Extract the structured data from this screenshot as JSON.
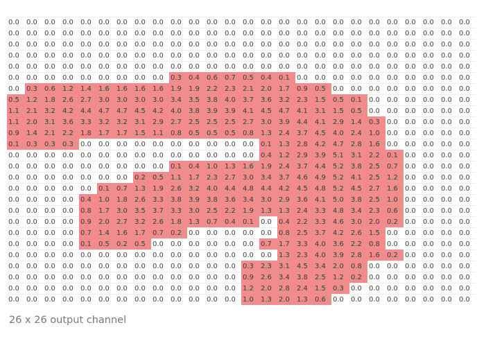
{
  "caption": "26 x 26 output channel",
  "highlight_color": "#f28b8b",
  "grid": {
    "rows": 26,
    "cols": 26,
    "values": [
      [
        0.0,
        0.0,
        0.0,
        0.0,
        0.0,
        0.0,
        0.0,
        0.0,
        0.0,
        0.0,
        0.0,
        0.0,
        0.0,
        0.0,
        0.0,
        0.0,
        0.0,
        0.0,
        0.0,
        0.0,
        0.0,
        0.0,
        0.0,
        0.0,
        0.0,
        0.0
      ],
      [
        0.0,
        0.0,
        0.0,
        0.0,
        0.0,
        0.0,
        0.0,
        0.0,
        0.0,
        0.0,
        0.0,
        0.0,
        0.0,
        0.0,
        0.0,
        0.0,
        0.0,
        0.0,
        0.0,
        0.0,
        0.0,
        0.0,
        0.0,
        0.0,
        0.0,
        0.0
      ],
      [
        0.0,
        0.0,
        0.0,
        0.0,
        0.0,
        0.0,
        0.0,
        0.0,
        0.0,
        0.0,
        0.0,
        0.0,
        0.0,
        0.0,
        0.0,
        0.0,
        0.0,
        0.0,
        0.0,
        0.0,
        0.0,
        0.0,
        0.0,
        0.0,
        0.0,
        0.0
      ],
      [
        0.0,
        0.0,
        0.0,
        0.0,
        0.0,
        0.0,
        0.0,
        0.0,
        0.0,
        0.0,
        0.0,
        0.0,
        0.0,
        0.0,
        0.0,
        0.0,
        0.0,
        0.0,
        0.0,
        0.0,
        0.0,
        0.0,
        0.0,
        0.0,
        0.0,
        0.0
      ],
      [
        0.0,
        0.0,
        0.0,
        0.0,
        0.0,
        0.0,
        0.0,
        0.0,
        0.0,
        0.0,
        0.0,
        0.0,
        0.0,
        0.0,
        0.0,
        0.0,
        0.0,
        0.0,
        0.0,
        0.0,
        0.0,
        0.0,
        0.0,
        0.0,
        0.0,
        0.0
      ],
      [
        0.0,
        0.0,
        0.0,
        0.0,
        0.0,
        0.0,
        0.0,
        0.0,
        0.0,
        0.3,
        0.4,
        0.6,
        0.7,
        0.5,
        0.4,
        0.1,
        0.0,
        0.0,
        0.0,
        0.0,
        0.0,
        0.0,
        0.0,
        0.0,
        0.0,
        0.0
      ],
      [
        0.0,
        0.3,
        0.6,
        1.2,
        1.4,
        1.6,
        1.6,
        1.6,
        1.6,
        1.9,
        1.9,
        2.2,
        2.3,
        2.1,
        2.0,
        1.7,
        0.9,
        0.5,
        0.0,
        0.0,
        0.0,
        0.0,
        0.0,
        0.0,
        0.0,
        0.0
      ],
      [
        0.5,
        1.2,
        1.8,
        2.6,
        2.7,
        3.0,
        3.0,
        3.0,
        3.0,
        3.4,
        3.5,
        3.8,
        4.0,
        3.7,
        3.6,
        3.2,
        2.3,
        1.5,
        0.5,
        0.1,
        0.0,
        0.0,
        0.0,
        0.0,
        0.0,
        0.0
      ],
      [
        1.1,
        2.1,
        3.2,
        4.2,
        4.4,
        4.7,
        4.7,
        4.5,
        4.2,
        4.0,
        3.8,
        3.9,
        3.9,
        4.1,
        4.5,
        4.7,
        4.1,
        3.1,
        1.5,
        0.5,
        0.0,
        0.0,
        0.0,
        0.0,
        0.0,
        0.0
      ],
      [
        1.1,
        2.0,
        3.1,
        3.6,
        3.3,
        3.2,
        3.2,
        3.1,
        2.9,
        2.7,
        2.5,
        2.5,
        2.5,
        2.7,
        3.0,
        3.9,
        4.4,
        4.1,
        2.9,
        1.4,
        0.3,
        0.0,
        0.0,
        0.0,
        0.0,
        0.0
      ],
      [
        0.9,
        1.4,
        2.1,
        2.2,
        1.8,
        1.7,
        1.7,
        1.5,
        1.1,
        0.8,
        0.5,
        0.5,
        0.5,
        0.8,
        1.3,
        2.4,
        3.7,
        4.5,
        4.0,
        2.4,
        1.0,
        0.0,
        0.0,
        0.0,
        0.0,
        0.0
      ],
      [
        0.1,
        0.3,
        0.3,
        0.3,
        0.0,
        0.0,
        0.0,
        0.0,
        0.0,
        0.0,
        0.0,
        0.0,
        0.0,
        0.0,
        0.1,
        1.3,
        2.8,
        4.2,
        4.7,
        2.8,
        1.6,
        0.0,
        0.0,
        0.0,
        0.0,
        0.0
      ],
      [
        0.0,
        0.0,
        0.0,
        0.0,
        0.0,
        0.0,
        0.0,
        0.0,
        0.0,
        0.0,
        0.0,
        0.0,
        0.0,
        0.0,
        0.4,
        1.2,
        2.9,
        3.9,
        5.1,
        3.1,
        2.2,
        0.1,
        0.0,
        0.0,
        0.0,
        0.0
      ],
      [
        0.0,
        0.0,
        0.0,
        0.0,
        0.0,
        0.0,
        0.0,
        0.0,
        0.0,
        0.1,
        0.4,
        1.0,
        1.3,
        1.6,
        1.9,
        2.4,
        3.7,
        4.4,
        5.2,
        3.8,
        2.5,
        0.7,
        0.0,
        0.0,
        0.0,
        0.0
      ],
      [
        0.0,
        0.0,
        0.0,
        0.0,
        0.0,
        0.0,
        0.0,
        0.2,
        0.5,
        1.1,
        1.7,
        2.3,
        2.7,
        3.0,
        3.4,
        3.7,
        4.6,
        4.9,
        5.2,
        4.1,
        2.5,
        1.2,
        0.0,
        0.0,
        0.0,
        0.0
      ],
      [
        0.0,
        0.0,
        0.0,
        0.0,
        0.0,
        0.1,
        0.7,
        1.3,
        1.9,
        2.6,
        3.2,
        4.0,
        4.4,
        4.8,
        4.4,
        4.2,
        4.5,
        4.8,
        5.2,
        4.5,
        2.7,
        1.6,
        0.0,
        0.0,
        0.0,
        0.0
      ],
      [
        0.0,
        0.0,
        0.0,
        0.0,
        0.4,
        1.0,
        1.8,
        2.6,
        3.3,
        3.8,
        3.9,
        3.8,
        3.6,
        3.4,
        3.0,
        2.9,
        3.6,
        4.1,
        5.0,
        3.8,
        2.5,
        1.0,
        0.0,
        0.0,
        0.0,
        0.0
      ],
      [
        0.0,
        0.0,
        0.0,
        0.0,
        0.8,
        1.7,
        3.0,
        3.5,
        3.7,
        3.3,
        3.0,
        2.5,
        2.2,
        1.9,
        1.3,
        1.3,
        2.4,
        3.3,
        4.8,
        3.4,
        2.3,
        0.6,
        0.0,
        0.0,
        0.0,
        0.0
      ],
      [
        0.0,
        0.0,
        0.0,
        0.0,
        0.9,
        2.0,
        2.7,
        3.2,
        2.6,
        1.8,
        1.3,
        0.7,
        0.4,
        0.1,
        0.0,
        0.4,
        2.2,
        3.3,
        4.6,
        3.0,
        2.0,
        0.2,
        0.0,
        0.0,
        0.0,
        0.0
      ],
      [
        0.0,
        0.0,
        0.0,
        0.0,
        0.7,
        1.4,
        1.6,
        1.7,
        0.7,
        0.2,
        0.0,
        0.0,
        0.0,
        0.0,
        0.0,
        0.8,
        2.5,
        3.7,
        4.2,
        2.6,
        1.5,
        0.0,
        0.0,
        0.0,
        0.0,
        0.0
      ],
      [
        0.0,
        0.0,
        0.0,
        0.0,
        0.1,
        0.5,
        0.2,
        0.5,
        0.0,
        0.0,
        0.0,
        0.0,
        0.0,
        0.0,
        0.7,
        1.7,
        3.3,
        4.0,
        3.6,
        2.2,
        0.8,
        0.0,
        0.0,
        0.0,
        0.0,
        0.0
      ],
      [
        0.0,
        0.0,
        0.0,
        0.0,
        0.0,
        0.0,
        0.0,
        0.0,
        0.0,
        0.0,
        0.0,
        0.0,
        0.0,
        0.0,
        0.0,
        1.3,
        2.3,
        4.0,
        3.9,
        2.8,
        1.6,
        0.2,
        0.0,
        0.0,
        0.0,
        0.0
      ],
      [
        0.0,
        0.0,
        0.0,
        0.0,
        0.0,
        0.0,
        0.0,
        0.0,
        0.0,
        0.0,
        0.0,
        0.0,
        0.0,
        0.3,
        2.3,
        3.1,
        4.5,
        3.4,
        2.0,
        0.8,
        0.0,
        0.0,
        0.0,
        0.0,
        0.0,
        0.0
      ],
      [
        0.0,
        0.0,
        0.0,
        0.0,
        0.0,
        0.0,
        0.0,
        0.0,
        0.0,
        0.0,
        0.0,
        0.0,
        0.0,
        0.9,
        2.6,
        3.4,
        3.8,
        2.5,
        1.2,
        0.2,
        0.0,
        0.0,
        0.0,
        0.0,
        0.0,
        0.0
      ],
      [
        0.0,
        0.0,
        0.0,
        0.0,
        0.0,
        0.0,
        0.0,
        0.0,
        0.0,
        0.0,
        0.0,
        0.0,
        0.0,
        1.2,
        2.0,
        2.8,
        2.4,
        1.5,
        0.3,
        0.0,
        0.0,
        0.0,
        0.0,
        0.0,
        0.0,
        0.0
      ],
      [
        0.0,
        0.0,
        0.0,
        0.0,
        0.0,
        0.0,
        0.0,
        0.0,
        0.0,
        0.0,
        0.0,
        0.0,
        0.0,
        1.0,
        1.3,
        2.0,
        1.3,
        0.6,
        0.0,
        0.0,
        0.0,
        0.0,
        0.0,
        0.0,
        0.0,
        0.0
      ]
    ]
  }
}
